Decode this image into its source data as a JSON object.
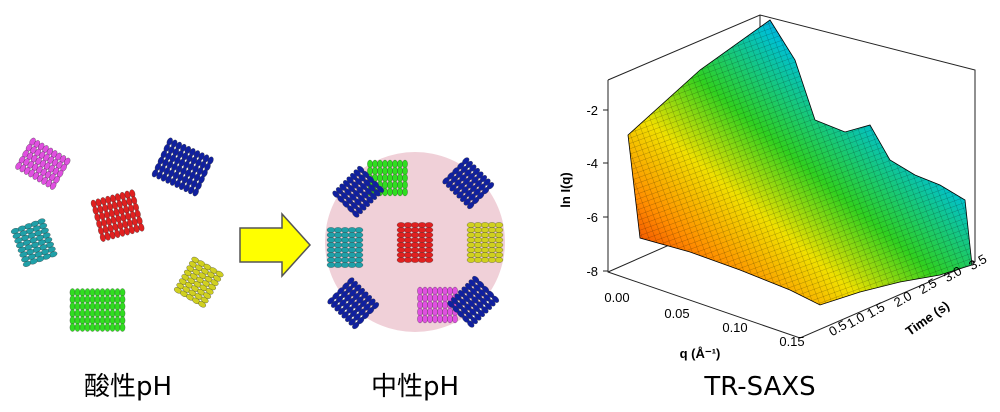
{
  "panels": [
    {
      "label": "酸性pH"
    },
    {
      "label": "中性pH"
    },
    {
      "label": "TR-SAXS"
    }
  ],
  "plot": {
    "y_label": "ln I(q)",
    "y_ticks": [
      "-2",
      "-4",
      "-6",
      "-8"
    ],
    "x_label": "q (Å⁻¹)",
    "x_ticks": [
      "0.00",
      "0.05",
      "0.10",
      "0.15"
    ],
    "t_label": "Time (s)",
    "t_ticks": [
      "0.5",
      "1.0",
      "1.5",
      "2.0",
      "2.5",
      "3.0",
      "3.5"
    ]
  }
}
